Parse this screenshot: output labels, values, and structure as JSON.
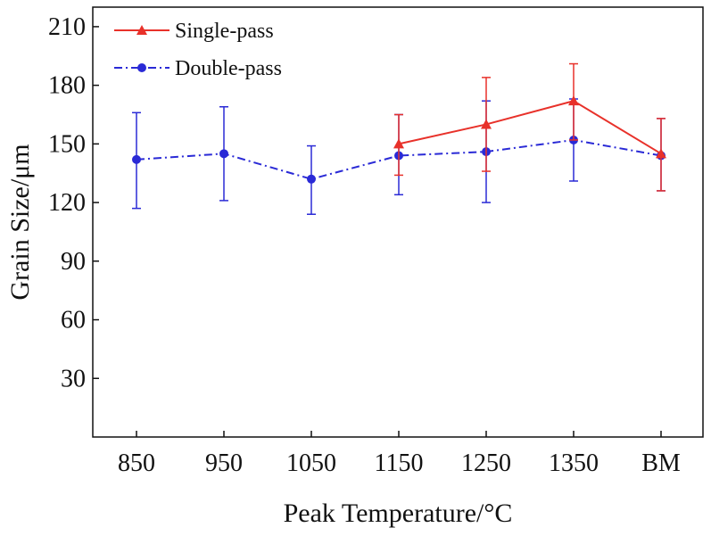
{
  "chart_data": {
    "type": "line",
    "xlabel": "Peak Temperature/°C",
    "ylabel": "Grain Size/μm",
    "categories": [
      "850",
      "950",
      "1050",
      "1150",
      "1250",
      "1350",
      "BM"
    ],
    "yticks": [
      "30",
      "60",
      "90",
      "120",
      "150",
      "180",
      "210"
    ],
    "ylim": [
      0,
      220
    ],
    "grid": false,
    "legend_position": "top-left",
    "series": [
      {
        "name": "Single-pass",
        "color": "#e8312a",
        "line_style": "solid",
        "marker": "triangle",
        "values": [
          null,
          null,
          null,
          150,
          160,
          172,
          145
        ],
        "err_low": [
          null,
          null,
          null,
          134,
          136,
          152,
          126
        ],
        "err_high": [
          null,
          null,
          null,
          165,
          184,
          191,
          163
        ]
      },
      {
        "name": "Double-pass",
        "color": "#2a2ad6",
        "line_style": "dash-dot",
        "marker": "circle",
        "values": [
          142,
          145,
          132,
          144,
          146,
          152,
          144
        ],
        "err_low": [
          117,
          121,
          114,
          124,
          120,
          131,
          126
        ],
        "err_high": [
          166,
          169,
          149,
          165,
          172,
          173,
          163
        ]
      }
    ]
  }
}
